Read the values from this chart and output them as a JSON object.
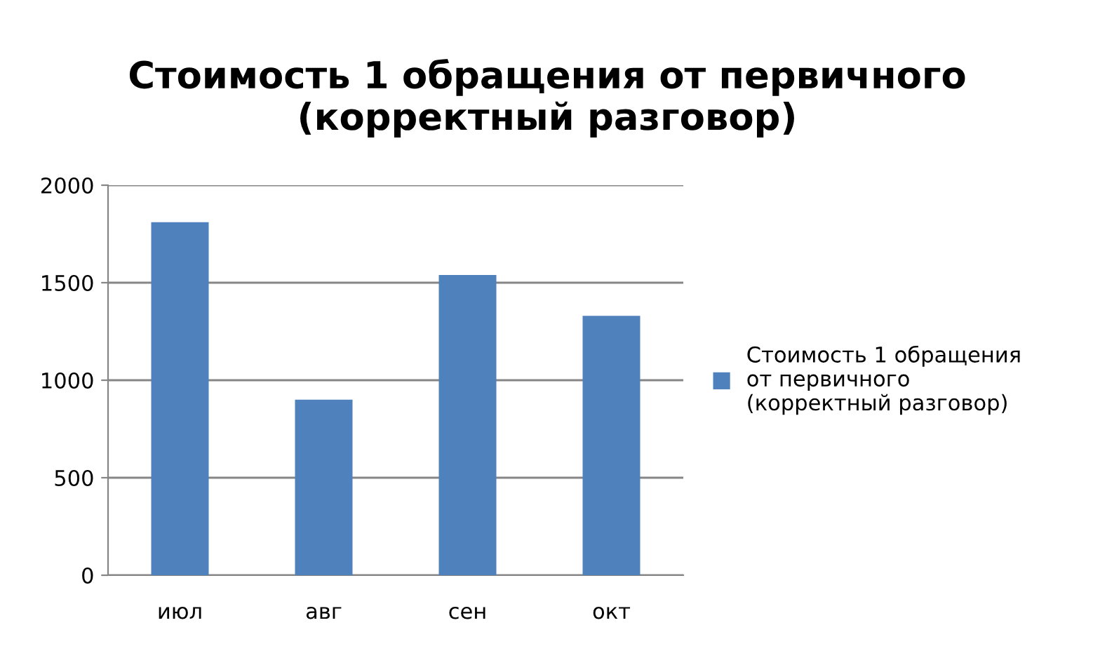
{
  "chart_data": {
    "type": "bar",
    "title": "Стоимость 1 обращения от первичного (корректный разговор)",
    "categories": [
      "июл",
      "авг",
      "сен",
      "окт"
    ],
    "series": [
      {
        "name": "Стоимость 1 обращения от первичного (корректный разговор)",
        "color": "#4f81bd",
        "values": [
          1810,
          900,
          1540,
          1330
        ]
      }
    ],
    "ylim": [
      0,
      2000
    ],
    "yticks": [
      0,
      500,
      1000,
      1500,
      2000
    ],
    "grid": "y",
    "legend": "right"
  }
}
